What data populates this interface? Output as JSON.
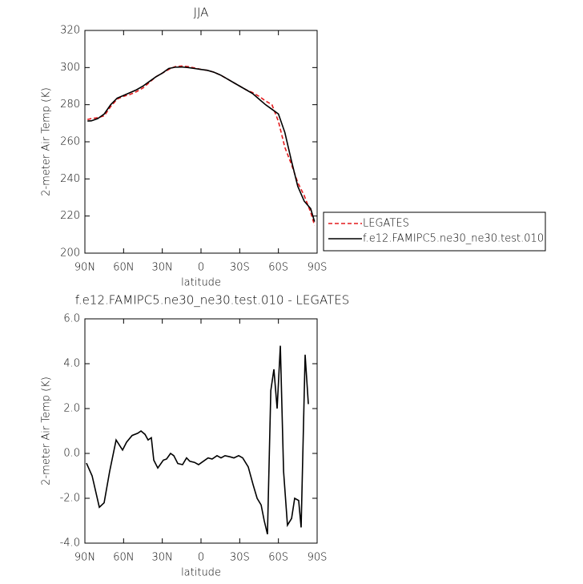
{
  "chart_data": [
    {
      "type": "line",
      "title": "JJA",
      "xlabel": "latitude",
      "ylabel": "2-meter Air Temp (K)",
      "x": [
        88,
        85,
        80,
        75,
        70,
        65,
        60,
        55,
        50,
        45,
        40,
        35,
        30,
        25,
        20,
        15,
        10,
        5,
        0,
        -5,
        -10,
        -15,
        -20,
        -25,
        -30,
        -35,
        -40,
        -45,
        -50,
        -55,
        -60,
        -65,
        -70,
        -75,
        -80,
        -85,
        -88
      ],
      "series": [
        {
          "name": "LEGATES",
          "color": "#e31a1c",
          "dash": true,
          "values": [
            272,
            272.5,
            273,
            274,
            279,
            283,
            284.5,
            285.5,
            287,
            289,
            292,
            295,
            297,
            299,
            300.5,
            300.8,
            300.5,
            299.8,
            299,
            298.5,
            297.5,
            296,
            294,
            292,
            290,
            288,
            286.5,
            284.5,
            282,
            280,
            271,
            257,
            248,
            238,
            231,
            222,
            215
          ]
        },
        {
          "name": "f.e12.FAMIPC5.ne30_ne30.test.010",
          "color": "#000000",
          "dash": false,
          "values": [
            271.2,
            271.3,
            272.5,
            275,
            280,
            283.5,
            285,
            286.5,
            288,
            290,
            292.5,
            295,
            297,
            299.5,
            300.2,
            300.3,
            300,
            299.5,
            299,
            298.5,
            297.5,
            296,
            294,
            292,
            290,
            288,
            286,
            283,
            280,
            277.5,
            275,
            265,
            250,
            236,
            228,
            224,
            217
          ]
        }
      ],
      "xlim": [
        90,
        -90
      ],
      "xticks": [
        {
          "value": 90,
          "label": "90N"
        },
        {
          "value": 60,
          "label": "60N"
        },
        {
          "value": 30,
          "label": "30N"
        },
        0,
        {
          "value": -30,
          "label": "30S"
        },
        {
          "value": -60,
          "label": "60S"
        },
        {
          "value": -90,
          "label": "90S"
        }
      ],
      "ylim": [
        200,
        320
      ],
      "yticks": [
        200,
        220,
        240,
        260,
        280,
        300,
        320
      ]
    },
    {
      "type": "line",
      "title": "f.e12.FAMIPC5.ne30_ne30.test.010 - LEGATES",
      "xlabel": "latitude",
      "ylabel": "2-meter Air Temp (K)",
      "x": [
        88.8,
        84.4,
        78.8,
        75.1,
        70.8,
        65.8,
        60.8,
        57.7,
        53.4,
        49.0,
        46.5,
        43.4,
        41.0,
        38.5,
        36.6,
        33.5,
        29.2,
        26.7,
        23.6,
        21.1,
        18.0,
        14.3,
        11.2,
        8.7,
        5.0,
        1.9,
        -1.8,
        -5.5,
        -8.6,
        -12.4,
        -15.5,
        -18.6,
        -22.4,
        -25.5,
        -29.2,
        -32.3,
        -36.6,
        -40.4,
        -43.5,
        -46.6,
        -49.0,
        -51.5,
        -54.1,
        -56.5,
        -59.0,
        -61.5,
        -64.0,
        -67.0,
        -70.2,
        -72.6,
        -75.7,
        -77.6,
        -80.7,
        -83.2
      ],
      "series": [
        {
          "color": "#000000",
          "dash": false,
          "values": [
            -0.43,
            -1,
            -2.4,
            -2.2,
            -0.8,
            0.6,
            0.15,
            0.5,
            0.8,
            0.9,
            1.0,
            0.85,
            0.6,
            0.7,
            -0.3,
            -0.65,
            -0.3,
            -0.25,
            0,
            -0.1,
            -0.45,
            -0.5,
            -0.2,
            -0.35,
            -0.4,
            -0.5,
            -0.35,
            -0.2,
            -0.25,
            -0.1,
            -0.2,
            -0.1,
            -0.15,
            -0.2,
            -0.1,
            -0.2,
            -0.6,
            -1.4,
            -2.0,
            -2.3,
            -3.0,
            -3.6,
            2.8,
            3.75,
            2.0,
            4.8,
            -0.8,
            -3.2,
            -2.9,
            -2.0,
            -2.1,
            -3.3,
            4.4,
            2.2
          ]
        }
      ],
      "xlim": [
        90,
        -90
      ],
      "xticks": [
        {
          "value": 90,
          "label": "90N"
        },
        {
          "value": 60,
          "label": "60N"
        },
        {
          "value": 30,
          "label": "30N"
        },
        0,
        {
          "value": -30,
          "label": "30S"
        },
        {
          "value": -60,
          "label": "60S"
        },
        {
          "value": -90,
          "label": "90S"
        }
      ],
      "ylim": [
        -4,
        6
      ],
      "yticks": [
        {
          "value": -4,
          "label": "-4.0"
        },
        {
          "value": -2,
          "label": "-2.0"
        },
        {
          "value": 0,
          "label": "0.0"
        },
        {
          "value": 2,
          "label": "2.0"
        },
        {
          "value": 4,
          "label": "4.0"
        },
        {
          "value": 6,
          "label": "6.0"
        }
      ]
    }
  ]
}
